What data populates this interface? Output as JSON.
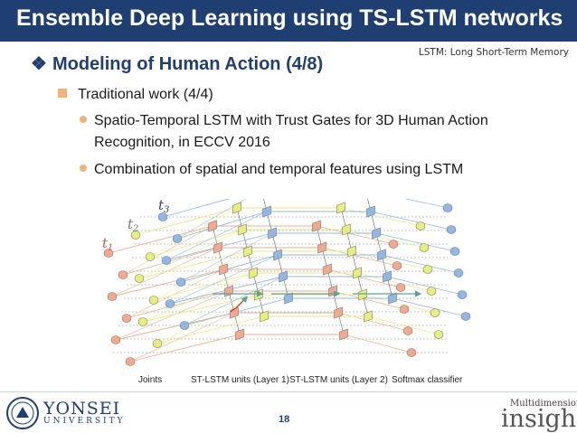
{
  "header": {
    "title": "Ensemble Deep Learning using TS-LSTM networks"
  },
  "note": "LSTM: Long Short-Term Memory",
  "section": {
    "bullet": "❖",
    "heading": "Modeling of Human Action (4/8)"
  },
  "level1": "Traditional work (4/4)",
  "bullets": [
    {
      "line1": "Spatio-Temporal LSTM with Trust Gates for 3D Human Action",
      "line2": "Recognition, in ECCV 2016"
    },
    {
      "line1": "Combination of spatial and temporal features using LSTM"
    }
  ],
  "diagram": {
    "time_labels": {
      "t1": "t",
      "t1_sub": "1",
      "t2": "t",
      "t2_sub": "2",
      "t3": "t",
      "t3_sub": "3"
    },
    "captions": [
      "Joints",
      "ST-LSTM units (Layer 1)",
      "ST-LSTM units (Layer 2)",
      "Softmax classifier"
    ],
    "colors": {
      "t1": "#f4a98e",
      "t2": "#e7ee7a",
      "t3": "#8fb8e8",
      "arrow": "#5aa39a"
    }
  },
  "footer": {
    "page": "18",
    "left_logo_line1": "YONSEI",
    "left_logo_line2": "UNIVERSITY",
    "right_logo_line1": "Multidimensional",
    "right_logo_line2": "insight"
  },
  "accent": "#1f3f73"
}
